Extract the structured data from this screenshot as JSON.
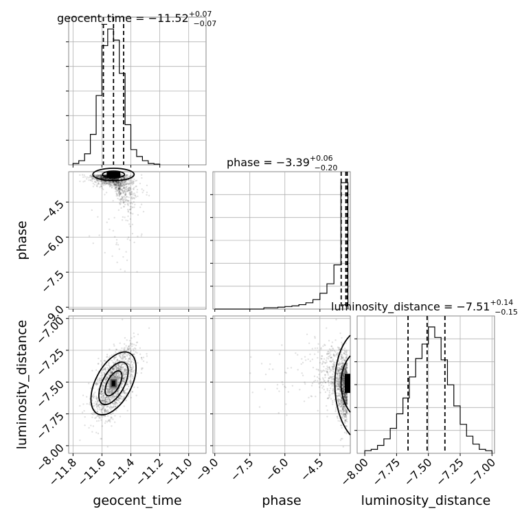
{
  "chart_data": {
    "type": "corner",
    "parameters": [
      "geocent_time",
      "phase",
      "luminosity_distance"
    ],
    "titles": [
      {
        "prefix": "geocent_time = ",
        "median": "−11.52",
        "plus": "+0.07",
        "minus": "−0.07"
      },
      {
        "prefix": "phase = ",
        "median": "−3.39",
        "plus": "+0.06",
        "minus": "−0.20"
      },
      {
        "prefix": "luminosity_distance = ",
        "median": "−7.51",
        "plus": "+0.14",
        "minus": "−0.15"
      }
    ],
    "axis_ranges": {
      "geocent_time": [
        -11.83,
        -10.88
      ],
      "phase": [
        -9.08,
        -3.2
      ],
      "luminosity_distance": [
        -8.06,
        -6.98
      ]
    },
    "tick_labels": {
      "geocent_time": [
        "−11.8",
        "−11.6",
        "−11.4",
        "−11.2",
        "−11.0"
      ],
      "phase": [
        "−9.0",
        "−7.5",
        "−6.0",
        "−4.5"
      ],
      "luminosity_distance": [
        "−8.00",
        "−7.75",
        "−7.50",
        "−7.25",
        "−7.00"
      ]
    },
    "tick_values": {
      "geocent_time": [
        -11.8,
        -11.6,
        -11.4,
        -11.2,
        -11.0
      ],
      "phase": [
        -9.0,
        -7.5,
        -6.0,
        -4.5
      ],
      "luminosity_distance": [
        -8.0,
        -7.75,
        -7.5,
        -7.25,
        -7.0
      ]
    },
    "quantiles": {
      "geocent_time": [
        -11.59,
        -11.52,
        -11.45
      ],
      "phase": [
        -3.59,
        -3.39,
        -3.33
      ],
      "luminosity_distance": [
        -7.66,
        -7.51,
        -7.37
      ]
    },
    "histograms": {
      "geocent_time": {
        "bins": [
          -11.8,
          -11.76,
          -11.72,
          -11.68,
          -11.64,
          -11.6,
          -11.56,
          -11.52,
          -11.48,
          -11.44,
          -11.4,
          -11.36,
          -11.32,
          -11.28,
          -11.24,
          -11.2
        ],
        "counts": [
          1,
          3,
          8,
          22,
          50,
          86,
          98,
          90,
          66,
          29,
          11,
          6,
          3,
          1,
          0.5
        ]
      },
      "phase": {
        "bins": [
          -9.0,
          -8.7,
          -8.4,
          -8.1,
          -7.8,
          -7.5,
          -7.2,
          -6.9,
          -6.6,
          -6.3,
          -6.0,
          -5.7,
          -5.4,
          -5.1,
          -4.8,
          -4.5,
          -4.2,
          -3.9,
          -3.6,
          -3.3
        ],
        "counts": [
          0,
          0,
          0,
          0,
          0,
          0,
          0,
          0.2,
          0.2,
          0.3,
          0.4,
          0.5,
          0.7,
          1,
          1.5,
          2.5,
          4,
          7,
          20
        ]
      },
      "luminosity_distance": {
        "bins": [
          -8.0,
          -7.95,
          -7.9,
          -7.85,
          -7.8,
          -7.75,
          -7.7,
          -7.65,
          -7.6,
          -7.55,
          -7.5,
          -7.45,
          -7.4,
          -7.35,
          -7.3,
          -7.25,
          -7.2,
          -7.15,
          -7.1,
          -7.05,
          -7.0
        ],
        "counts": [
          2,
          3,
          6,
          11,
          19,
          30,
          42,
          58,
          72,
          83,
          96,
          88,
          71,
          52,
          36,
          22,
          13,
          7,
          3,
          2
        ]
      }
    },
    "axis_labels": {
      "x": [
        "geocent_time",
        "phase",
        "luminosity_distance"
      ],
      "y": [
        "phase",
        "luminosity_distance"
      ]
    },
    "grid": true
  }
}
